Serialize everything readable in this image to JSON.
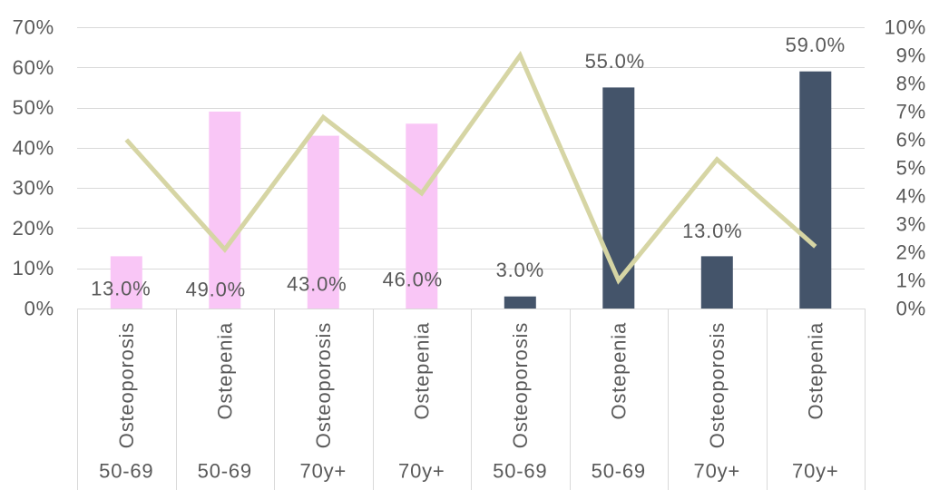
{
  "chart_data": {
    "type": "bar",
    "categories": [
      "Osteoporosis",
      "Ostepenia",
      "Osteoporosis",
      "Ostepenia",
      "Osteoporosis",
      "Ostepenia",
      "Osteoporosis",
      "Ostepenia"
    ],
    "category_groups": [
      "50-69",
      "50-69",
      "70y+",
      "70y+",
      "50-69",
      "50-69",
      "70y+",
      "70y+"
    ],
    "series": [
      {
        "type": "bar",
        "y_axis": "left",
        "values": [
          13.0,
          49.0,
          43.0,
          46.0,
          3.0,
          55.0,
          13.0,
          59.0
        ],
        "data_labels": [
          "13.0%",
          "49.0%",
          "43.0%",
          "46.0%",
          "3.0%",
          "55.0%",
          "13.0%",
          "59.0%"
        ],
        "colors": [
          "#F9C6F6",
          "#F9C6F6",
          "#F9C6F6",
          "#F9C6F6",
          "#44546A",
          "#44546A",
          "#44546A",
          "#44546A"
        ]
      },
      {
        "type": "line",
        "y_axis": "right",
        "values": [
          6.0,
          2.1,
          6.8,
          4.1,
          9.0,
          1.0,
          5.3,
          2.2
        ],
        "color": "#D6D5A4"
      }
    ],
    "y_left": {
      "range": [
        0,
        70
      ],
      "tick_labels": [
        "0%",
        "10%",
        "20%",
        "30%",
        "40%",
        "50%",
        "60%",
        "70%"
      ]
    },
    "y_right": {
      "range": [
        0,
        10
      ],
      "tick_labels": [
        "0%",
        "1%",
        "2%",
        "3%",
        "4%",
        "5%",
        "6%",
        "7%",
        "8%",
        "9%",
        "10%"
      ]
    },
    "grid": true
  }
}
